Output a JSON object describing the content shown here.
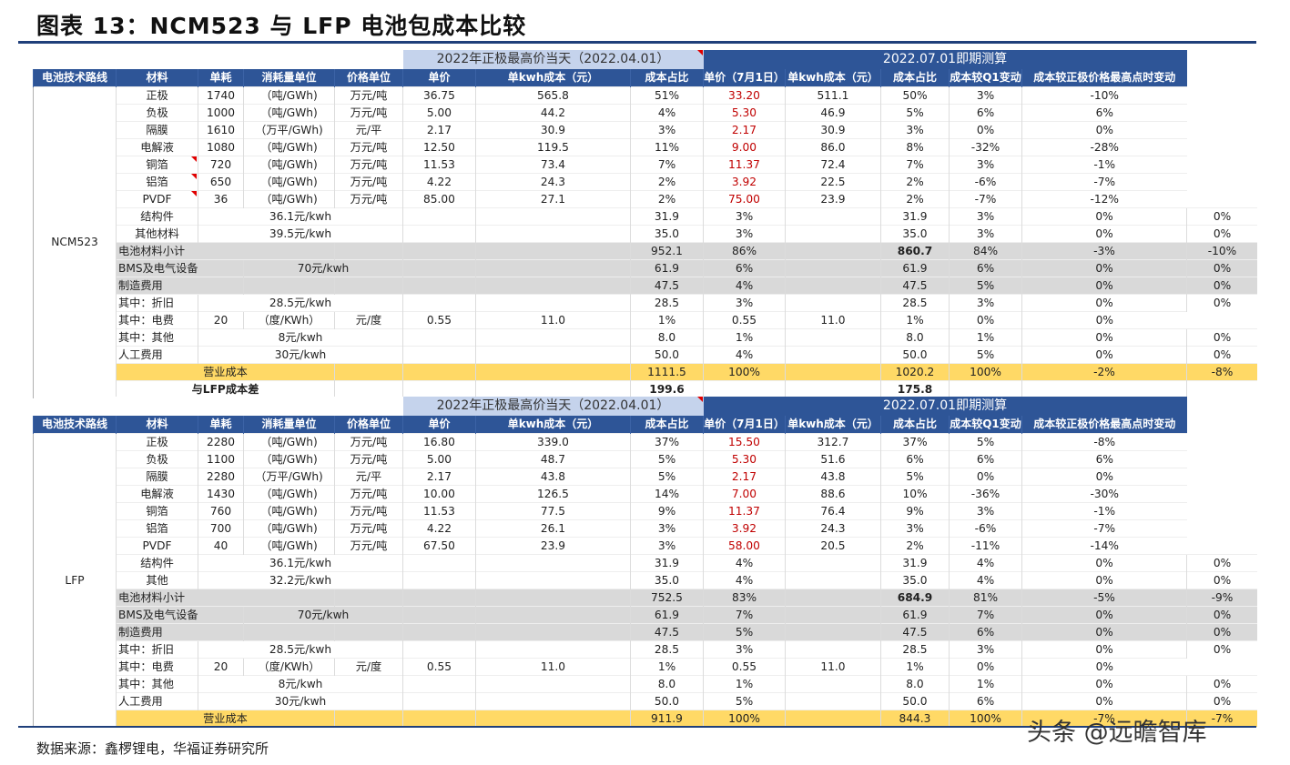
{
  "title": "图表 13：NCM523 与 LFP 电池包成本比较",
  "source": "数据来源：鑫椤锂电，华福证券研究所",
  "watermark": "头条 @远瞻智库",
  "header_labels": [
    "电池技术路线",
    "材料",
    "单耗",
    "消耗量单位",
    "价格单位",
    "单价",
    "单kwh成本（元）",
    "成本占比",
    "单价（7月1日）",
    "单kwh成本（元）",
    "成本占比",
    "成本较Q1变动",
    "成本较正极价格最高点时变动"
  ],
  "ncm": {
    "period1": "2022年正极最高价当天（2022.04.01）",
    "period2": "2022.07.01即期测算",
    "route": "NCM523",
    "rows": [
      {
        "m": "正极",
        "q": "1740",
        "cu": "（吨/GWh)",
        "pu": "万元/吨",
        "p": "36.75",
        "c": "565.8",
        "s": "51%",
        "p2": "33.20",
        "c2": "511.1",
        "s2": "50%",
        "d1": "3%",
        "d2": "-10%"
      },
      {
        "m": "负极",
        "q": "1000",
        "cu": "（吨/GWh)",
        "pu": "万元/吨",
        "p": "5.00",
        "c": "44.2",
        "s": "4%",
        "p2": "5.30",
        "c2": "46.9",
        "s2": "5%",
        "d1": "6%",
        "d2": "6%"
      },
      {
        "m": "隔膜",
        "q": "1610",
        "cu": "（万平/GWh)",
        "pu": "元/平",
        "p": "2.17",
        "c": "30.9",
        "s": "3%",
        "p2": "2.17",
        "c2": "30.9",
        "s2": "3%",
        "d1": "0%",
        "d2": "0%"
      },
      {
        "m": "电解液",
        "q": "1080",
        "cu": "（吨/GWh)",
        "pu": "万元/吨",
        "p": "12.50",
        "c": "119.5",
        "s": "11%",
        "p2": "9.00",
        "c2": "86.0",
        "s2": "8%",
        "d1": "-32%",
        "d2": "-28%"
      },
      {
        "m": "铜箔",
        "q": "720",
        "cu": "（吨/GWh)",
        "pu": "万元/吨",
        "p": "11.53",
        "c": "73.4",
        "s": "7%",
        "p2": "11.37",
        "c2": "72.4",
        "s2": "7%",
        "d1": "3%",
        "d2": "-1%"
      },
      {
        "m": "铝箔",
        "q": "650",
        "cu": "（吨/GWh)",
        "pu": "万元/吨",
        "p": "4.22",
        "c": "24.3",
        "s": "2%",
        "p2": "3.92",
        "c2": "22.5",
        "s2": "2%",
        "d1": "-6%",
        "d2": "-7%"
      },
      {
        "m": "PVDF",
        "q": "36",
        "cu": "（吨/GWh)",
        "pu": "万元/吨",
        "p": "85.00",
        "c": "27.1",
        "s": "2%",
        "p2": "75.00",
        "c2": "23.9",
        "s2": "2%",
        "d1": "-7%",
        "d2": "-12%"
      }
    ],
    "struct": {
      "m": "结构件",
      "u": "36.1元/kwh",
      "c": "31.9",
      "s": "3%",
      "c2": "31.9",
      "s2": "3%",
      "d1": "0%",
      "d2": "0%"
    },
    "other": {
      "m": "其他材料",
      "u": "39.5元/kwh",
      "c": "35.0",
      "s": "3%",
      "c2": "35.0",
      "s2": "3%",
      "d1": "0%",
      "d2": "0%"
    },
    "subtotal": {
      "m": "电池材料小计",
      "c": "952.1",
      "s": "86%",
      "c2": "860.7",
      "s2": "84%",
      "d1": "-3%",
      "d2": "-10%"
    },
    "bms": {
      "m": "BMS及电气设备",
      "u": "70元/kwh",
      "c": "61.9",
      "s": "6%",
      "c2": "61.9",
      "s2": "6%",
      "d1": "0%",
      "d2": "0%"
    },
    "mfg": {
      "m": "制造费用",
      "c": "47.5",
      "s": "4%",
      "c2": "47.5",
      "s2": "5%",
      "d1": "0%",
      "d2": "0%"
    },
    "dep": {
      "m": "其中：折旧",
      "u": "28.5元/kwh",
      "c": "28.5",
      "s": "3%",
      "c2": "28.5",
      "s2": "3%",
      "d1": "0%",
      "d2": "0%"
    },
    "elec": {
      "m": "其中：电费",
      "q": "20",
      "cu": "（度/KWh）",
      "pu": "元/度",
      "p": "0.55",
      "c": "11.0",
      "s": "1%",
      "p2": "0.55",
      "c2": "11.0",
      "s2": "1%",
      "d1": "0%",
      "d2": "0%"
    },
    "oth2": {
      "m": "其中：其他",
      "u": "8元/kwh",
      "c": "8.0",
      "s": "1%",
      "c2": "8.0",
      "s2": "1%",
      "d1": "0%",
      "d2": "0%"
    },
    "labor": {
      "m": "人工费用",
      "u": "30元/kwh",
      "c": "50.0",
      "s": "4%",
      "c2": "50.0",
      "s2": "5%",
      "d1": "0%",
      "d2": "0%"
    },
    "op": {
      "m": "营业成本",
      "c": "1111.5",
      "s": "100%",
      "c2": "1020.2",
      "s2": "100%",
      "d1": "-2%",
      "d2": "-8%"
    },
    "diff": {
      "m": "与LFP成本差",
      "c": "199.6",
      "c2": "175.8"
    }
  },
  "lfp": {
    "period1": "2022年正极最高价当天（2022.04.01）",
    "period2": "2022.07.01即期测算",
    "route": "LFP",
    "rows": [
      {
        "m": "正极",
        "q": "2280",
        "cu": "（吨/GWh)",
        "pu": "万元/吨",
        "p": "16.80",
        "c": "339.0",
        "s": "37%",
        "p2": "15.50",
        "c2": "312.7",
        "s2": "37%",
        "d1": "5%",
        "d2": "-8%"
      },
      {
        "m": "负极",
        "q": "1100",
        "cu": "（吨/GWh)",
        "pu": "万元/吨",
        "p": "5.00",
        "c": "48.7",
        "s": "5%",
        "p2": "5.30",
        "c2": "51.6",
        "s2": "6%",
        "d1": "6%",
        "d2": "6%"
      },
      {
        "m": "隔膜",
        "q": "2280",
        "cu": "（万平/GWh)",
        "pu": "元/平",
        "p": "2.17",
        "c": "43.8",
        "s": "5%",
        "p2": "2.17",
        "c2": "43.8",
        "s2": "5%",
        "d1": "0%",
        "d2": "0%"
      },
      {
        "m": "电解液",
        "q": "1430",
        "cu": "（吨/GWh)",
        "pu": "万元/吨",
        "p": "10.00",
        "c": "126.5",
        "s": "14%",
        "p2": "7.00",
        "c2": "88.6",
        "s2": "10%",
        "d1": "-36%",
        "d2": "-30%"
      },
      {
        "m": "铜箔",
        "q": "760",
        "cu": "（吨/GWh)",
        "pu": "万元/吨",
        "p": "11.53",
        "c": "77.5",
        "s": "9%",
        "p2": "11.37",
        "c2": "76.4",
        "s2": "9%",
        "d1": "3%",
        "d2": "-1%"
      },
      {
        "m": "铝箔",
        "q": "700",
        "cu": "（吨/GWh)",
        "pu": "万元/吨",
        "p": "4.22",
        "c": "26.1",
        "s": "3%",
        "p2": "3.92",
        "c2": "24.3",
        "s2": "3%",
        "d1": "-6%",
        "d2": "-7%"
      },
      {
        "m": "PVDF",
        "q": "40",
        "cu": "（吨/GWh)",
        "pu": "万元/吨",
        "p": "67.50",
        "c": "23.9",
        "s": "3%",
        "p2": "58.00",
        "c2": "20.5",
        "s2": "2%",
        "d1": "-11%",
        "d2": "-14%"
      }
    ],
    "struct": {
      "m": "结构件",
      "u": "36.1元/kwh",
      "c": "31.9",
      "s": "4%",
      "c2": "31.9",
      "s2": "4%",
      "d1": "0%",
      "d2": "0%"
    },
    "other": {
      "m": "其他",
      "u": "32.2元/kwh",
      "c": "35.0",
      "s": "4%",
      "c2": "35.0",
      "s2": "4%",
      "d1": "0%",
      "d2": "0%"
    },
    "subtotal": {
      "m": "电池材料小计",
      "c": "752.5",
      "s": "83%",
      "c2": "684.9",
      "s2": "81%",
      "d1": "-5%",
      "d2": "-9%"
    },
    "bms": {
      "m": "BMS及电气设备",
      "u": "70元/kwh",
      "c": "61.9",
      "s": "7%",
      "c2": "61.9",
      "s2": "7%",
      "d1": "0%",
      "d2": "0%"
    },
    "mfg": {
      "m": "制造费用",
      "c": "47.5",
      "s": "5%",
      "c2": "47.5",
      "s2": "6%",
      "d1": "0%",
      "d2": "0%"
    },
    "dep": {
      "m": "其中：折旧",
      "u": "28.5元/kwh",
      "c": "28.5",
      "s": "3%",
      "c2": "28.5",
      "s2": "3%",
      "d1": "0%",
      "d2": "0%"
    },
    "elec": {
      "m": "其中：电费",
      "q": "20",
      "cu": "（度/KWh）",
      "pu": "元/度",
      "p": "0.55",
      "c": "11.0",
      "s": "1%",
      "p2": "0.55",
      "c2": "11.0",
      "s2": "1%",
      "d1": "0%",
      "d2": "0%"
    },
    "oth2": {
      "m": "其中：其他",
      "u": "8元/kwh",
      "c": "8.0",
      "s": "1%",
      "c2": "8.0",
      "s2": "1%",
      "d1": "0%",
      "d2": "0%"
    },
    "labor": {
      "m": "人工费用",
      "u": "30元/kwh",
      "c": "50.0",
      "s": "5%",
      "c2": "50.0",
      "s2": "6%",
      "d1": "0%",
      "d2": "0%"
    },
    "op": {
      "m": "营业成本",
      "c": "911.9",
      "s": "100%",
      "c2": "844.3",
      "s2": "100%",
      "d1": "-7%",
      "d2": "-7%"
    }
  }
}
